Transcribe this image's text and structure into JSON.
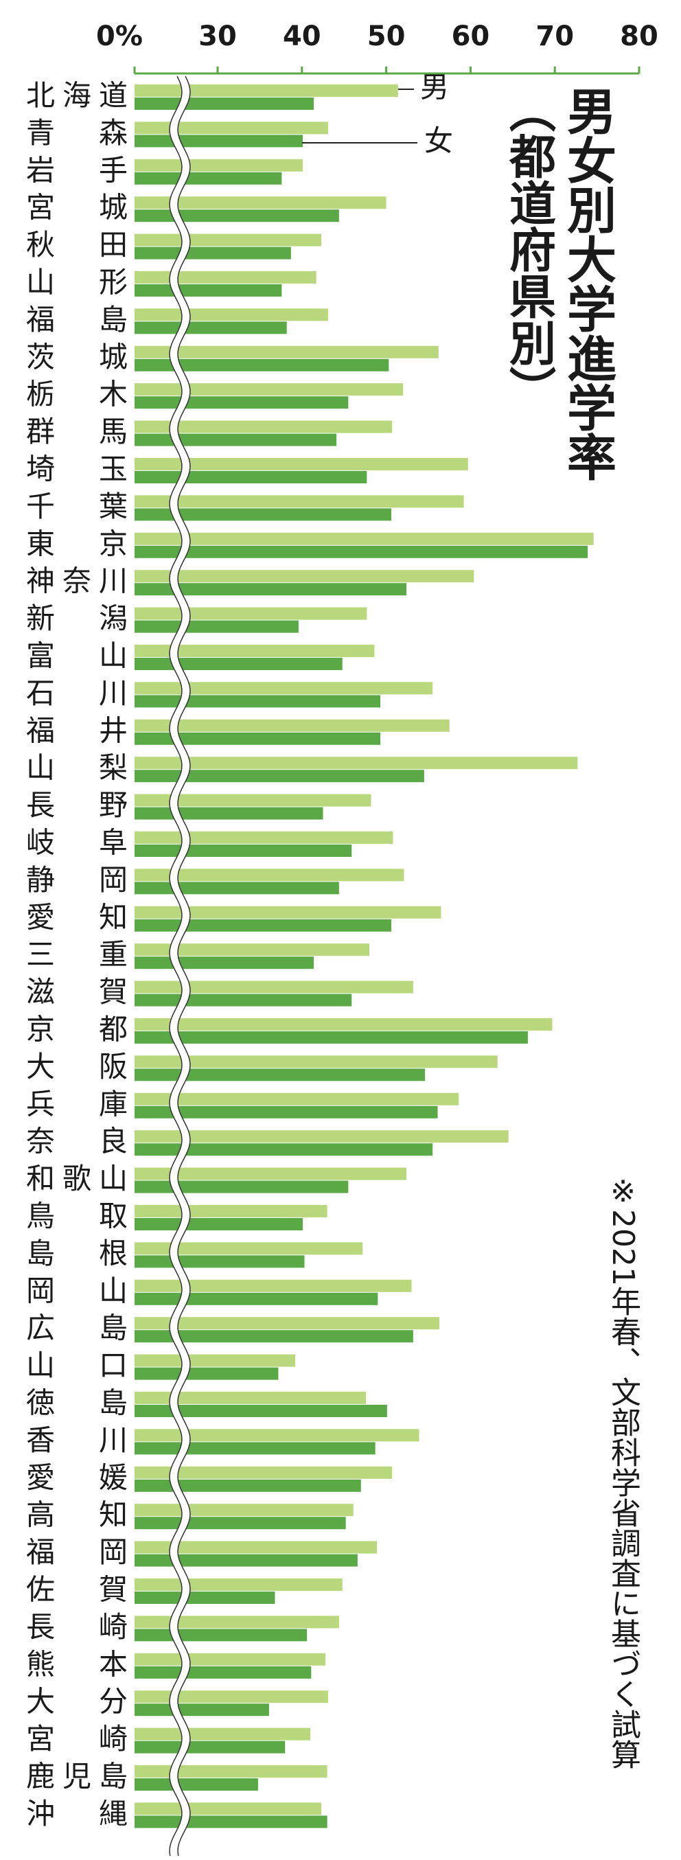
{
  "chart_data": {
    "type": "bar",
    "orientation": "horizontal",
    "title": "男女別大学進学率",
    "subtitle": "（都道府県別）",
    "note": "※2021年春、文部科学省調査に基づく試算",
    "categories": [
      "北海道",
      "青　森",
      "岩　手",
      "宮　城",
      "秋　田",
      "山　形",
      "福　島",
      "茨　城",
      "栃　木",
      "群　馬",
      "埼　玉",
      "千　葉",
      "東　京",
      "神奈川",
      "新　潟",
      "富　山",
      "石　川",
      "福　井",
      "山　梨",
      "長　野",
      "岐　阜",
      "静　岡",
      "愛　知",
      "三　重",
      "滋　賀",
      "京　都",
      "大　阪",
      "兵　庫",
      "奈　良",
      "和歌山",
      "鳥　取",
      "島　根",
      "岡　山",
      "広　島",
      "山　口",
      "徳　島",
      "香　川",
      "愛　媛",
      "高　知",
      "福　岡",
      "佐　賀",
      "長　崎",
      "熊　本",
      "大　分",
      "宮　崎",
      "鹿児島",
      "沖　縄"
    ],
    "series": [
      {
        "name": "男",
        "color": "#b9d77c",
        "values": [
          51.4,
          43.1,
          40.1,
          50.0,
          42.3,
          41.7,
          43.1,
          56.2,
          52.0,
          50.7,
          59.7,
          59.2,
          74.6,
          60.4,
          47.7,
          48.6,
          55.5,
          57.5,
          72.7,
          48.2,
          50.8,
          52.1,
          56.5,
          48.0,
          53.2,
          69.7,
          63.2,
          58.6,
          64.5,
          52.4,
          43.0,
          47.2,
          53.0,
          56.3,
          39.2,
          47.6,
          53.9,
          50.7,
          46.1,
          48.9,
          44.8,
          44.4,
          42.8,
          43.1,
          41.0,
          43.0,
          42.3
        ]
      },
      {
        "name": "女",
        "color": "#5aa846",
        "values": [
          41.4,
          40.1,
          37.6,
          44.4,
          38.7,
          37.6,
          38.2,
          50.3,
          45.5,
          44.1,
          47.7,
          50.6,
          73.9,
          52.4,
          39.6,
          44.8,
          49.3,
          49.3,
          54.5,
          42.5,
          45.9,
          44.4,
          50.6,
          41.4,
          45.9,
          66.8,
          54.6,
          56.1,
          55.5,
          45.5,
          40.1,
          40.3,
          49.0,
          53.2,
          37.2,
          50.1,
          48.7,
          47.0,
          45.2,
          46.6,
          36.8,
          40.6,
          41.1,
          36.1,
          38.0,
          34.8,
          43.0
        ]
      }
    ],
    "xlim": [
      0,
      80
    ],
    "xticks": [
      {
        "value": 0,
        "label": "0%"
      },
      30,
      40,
      50,
      60,
      70,
      80
    ],
    "axis_color": "#5aa846"
  }
}
